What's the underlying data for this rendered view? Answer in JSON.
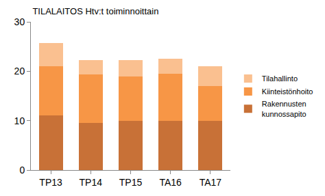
{
  "chart_data": {
    "type": "bar",
    "title": "TILALAITOS Htv:t toiminnoittain",
    "categories": [
      "TP13",
      "TP14",
      "TP15",
      "TA16",
      "TA17"
    ],
    "stacked": true,
    "series": [
      {
        "name": "Rakennusten kunnossapito",
        "color": "#c87137",
        "values": [
          11,
          9.5,
          10,
          10,
          10
        ]
      },
      {
        "name": "Kiinteistönhoito",
        "color": "#f79646",
        "values": [
          10,
          9.8,
          9,
          9.5,
          7
        ]
      },
      {
        "name": "Tilahallinto",
        "color": "#fac090",
        "values": [
          4.7,
          3,
          3.2,
          3,
          4
        ]
      }
    ],
    "ylim": [
      0,
      30
    ],
    "yticks": [
      0,
      10,
      20,
      30
    ],
    "grid": false,
    "legend": "right"
  }
}
